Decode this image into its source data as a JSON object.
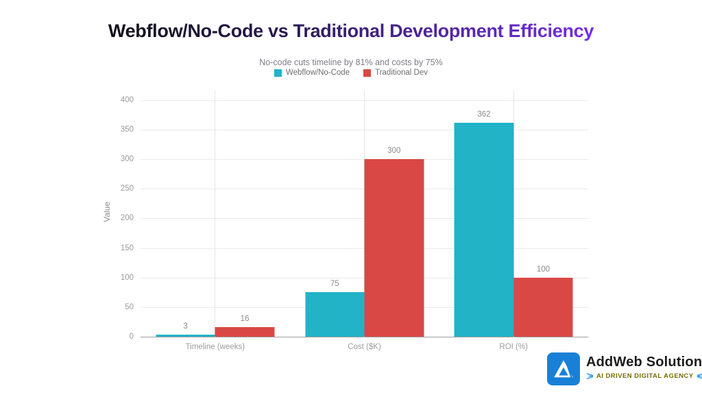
{
  "slide": {
    "title": "Webflow/No-Code vs Traditional Development Efficiency",
    "title_gradient_start": "#101016",
    "title_gradient_end": "#7b2ff0",
    "subtitle": "No-code cuts timeline by 81% and costs by 75%"
  },
  "chart_data": {
    "type": "bar",
    "title": "No-code cuts timeline by 81% and costs by 75%",
    "categories": [
      "Timeline (weeks)",
      "Cost ($K)",
      "ROI (%)"
    ],
    "series": [
      {
        "name": "Webflow/No-Code",
        "color": "#22b3c7",
        "values": [
          3,
          75,
          362
        ]
      },
      {
        "name": "Traditional Dev",
        "color": "#d94845",
        "values": [
          16,
          300,
          100
        ]
      }
    ],
    "ylabel": "Value",
    "xlabel": "",
    "yticks": [
      0,
      50,
      100,
      150,
      200,
      250,
      300,
      350,
      400
    ],
    "ylim": [
      0,
      400
    ],
    "grid": true,
    "legend_position": "top",
    "bar_value_labels": true
  },
  "footer": {
    "brand": "AddWeb Solution",
    "tagline": "AI DRIVEN DIGITAL AGENCY",
    "brand_color": "#1980d8",
    "tagline_color": "#756d04",
    "tagline_icon_color": "#2e9ce8"
  }
}
